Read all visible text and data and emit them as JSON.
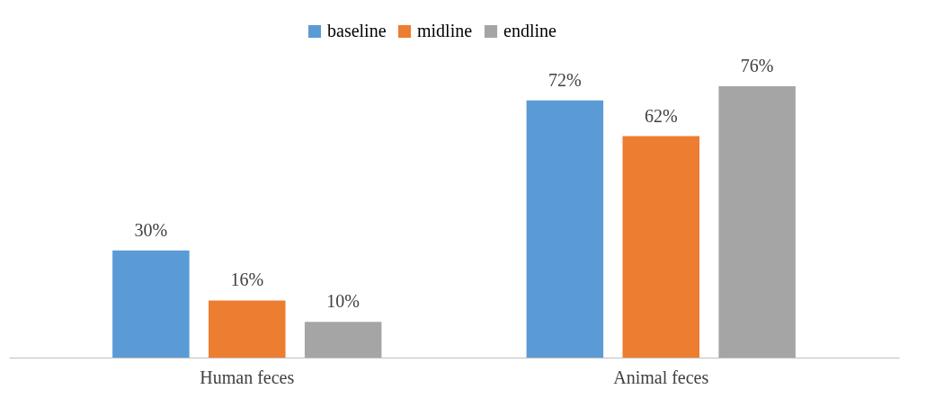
{
  "chart_data": {
    "type": "bar",
    "categories": [
      "Human feces",
      "Animal feces"
    ],
    "series": [
      {
        "name": "baseline",
        "color": "#5b9bd5",
        "values": [
          30,
          72
        ],
        "value_labels": [
          "30%",
          "72%"
        ]
      },
      {
        "name": "midline",
        "color": "#ed7d31",
        "values": [
          16,
          62
        ],
        "value_labels": [
          "16%",
          "62%"
        ]
      },
      {
        "name": "endline",
        "color": "#a5a5a5",
        "values": [
          10,
          76
        ],
        "value_labels": [
          "10%",
          "76%"
        ]
      }
    ],
    "legend": "top"
  }
}
